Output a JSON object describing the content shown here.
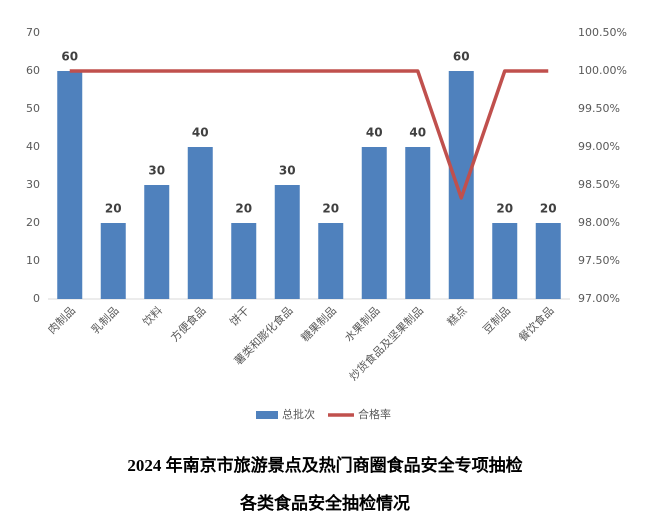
{
  "chart_data": {
    "type": "combo",
    "title": "2024 年南京市旅游景点及热门商圈食品安全专项抽检",
    "subtitle": "各类食品安全抽检情况",
    "categories": [
      "肉制品",
      "乳制品",
      "饮料",
      "方便食品",
      "饼干",
      "薯类和膨化食品",
      "糖果制品",
      "水果制品",
      "炒货食品及坚果制品",
      "糕点",
      "豆制品",
      "餐饮食品"
    ],
    "series": [
      {
        "name": "总批次",
        "type": "bar",
        "color": "#4f81bd",
        "values": [
          60,
          20,
          30,
          40,
          20,
          30,
          20,
          40,
          40,
          60,
          20,
          20
        ]
      },
      {
        "name": "合格率",
        "type": "line",
        "axis": "y2",
        "color": "#c0504d",
        "values": [
          100,
          100,
          100,
          100,
          100,
          100,
          100,
          100,
          100,
          98.33,
          100,
          100
        ]
      }
    ],
    "ylim": [
      0,
      70
    ],
    "yticks": [
      0,
      10,
      20,
      30,
      40,
      50,
      60,
      70
    ],
    "y2lim": [
      97,
      100.5
    ],
    "y2ticks": [
      {
        "value": 97,
        "label": "97.00%"
      },
      {
        "value": 97.5,
        "label": "97.50%"
      },
      {
        "value": 98,
        "label": "98.00%"
      },
      {
        "value": 98.5,
        "label": "98.50%"
      },
      {
        "value": 99,
        "label": "99.00%"
      },
      {
        "value": 99.5,
        "label": "99.50%"
      },
      {
        "value": 100,
        "label": "100.00%"
      },
      {
        "value": 100.5,
        "label": "100.50%"
      }
    ],
    "grid": false,
    "legend": "bottom"
  }
}
